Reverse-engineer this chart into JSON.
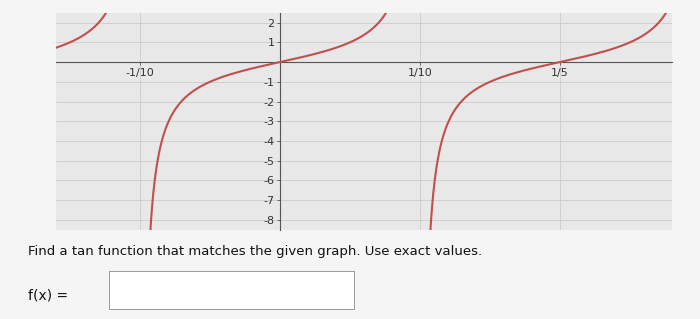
{
  "xlim": [
    -0.16,
    0.28
  ],
  "ylim": [
    -8.5,
    2.5
  ],
  "x_ticks": [
    -0.1,
    0.1,
    0.2
  ],
  "x_tick_labels": [
    "-1/10",
    "1/10",
    "1/5"
  ],
  "y_ticks": [
    2,
    1,
    -1,
    -2,
    -3,
    -4,
    -5,
    -6,
    -7,
    -8
  ],
  "y_tick_labels": [
    "2",
    "1",
    "-1",
    "-2",
    "-3",
    "-4",
    "-5",
    "-6",
    "-7",
    "-8"
  ],
  "curve_color": "#c0504d",
  "curve_linewidth": 1.5,
  "period": 0.2,
  "background_color": "#e8e8e8",
  "grid_color": "#cccccc",
  "text_bottom": "Find a tan function that matches the given graph. Use exact values.",
  "text_fx": "f(x) =",
  "omega": 15.707963267948966,
  "vertical_shift": 0
}
